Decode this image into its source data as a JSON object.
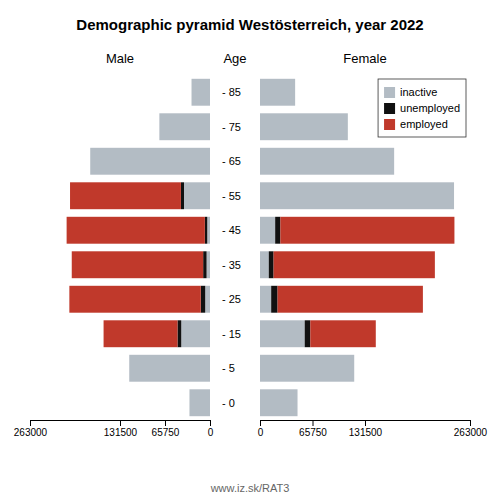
{
  "chart_data": [
    {
      "type": "bar",
      "title": "Demographic pyramid Westösterreich, year 2022",
      "subtitle": "Male",
      "ylabel": "Age",
      "orientation": "horizontal",
      "stacked": true,
      "categories": [
        "- 0",
        "- 5",
        "- 15",
        "- 25",
        "- 35",
        "- 45",
        "- 55",
        "- 65",
        "- 75",
        "- 85"
      ],
      "series": [
        {
          "color": "#b3bcc4",
          "values": [
            30000,
            118000,
            42000,
            7000,
            5000,
            4000,
            38000,
            175000,
            74000,
            27000
          ]
        },
        {
          "color": "#111111",
          "values": [
            0,
            0,
            5500,
            6500,
            5000,
            3500,
            4500,
            0,
            0,
            0
          ]
        },
        {
          "color": "#c0392b",
          "values": [
            0,
            0,
            108000,
            192000,
            192000,
            202000,
            162000,
            0,
            0,
            0
          ]
        }
      ],
      "xlim": [
        263000,
        0
      ],
      "xticks": [
        263000,
        131500,
        65750,
        0
      ],
      "grid": false,
      "annotations": [
        "www.iz.sk/RAT3"
      ]
    },
    {
      "type": "bar",
      "subtitle": "Female",
      "orientation": "horizontal",
      "stacked": true,
      "categories": [
        "- 0",
        "- 5",
        "- 15",
        "- 25",
        "- 35",
        "- 45",
        "- 55",
        "- 65",
        "- 75",
        "- 85"
      ],
      "series": [
        {
          "name": "inactive",
          "color": "#b3bcc4",
          "values": [
            47000,
            118000,
            56000,
            14000,
            11000,
            19000,
            243000,
            168000,
            110000,
            44000
          ]
        },
        {
          "name": "unemployed",
          "color": "#111111",
          "values": [
            0,
            0,
            7000,
            8000,
            6000,
            6500,
            0,
            0,
            0,
            0
          ]
        },
        {
          "name": "employed",
          "color": "#c0392b",
          "values": [
            0,
            0,
            82000,
            182000,
            202000,
            218000,
            0,
            0,
            0,
            0
          ]
        }
      ],
      "xlim": [
        0,
        263000
      ],
      "xticks": [
        0,
        65750,
        131500,
        263000
      ],
      "grid": false,
      "legend": "upper right"
    }
  ]
}
